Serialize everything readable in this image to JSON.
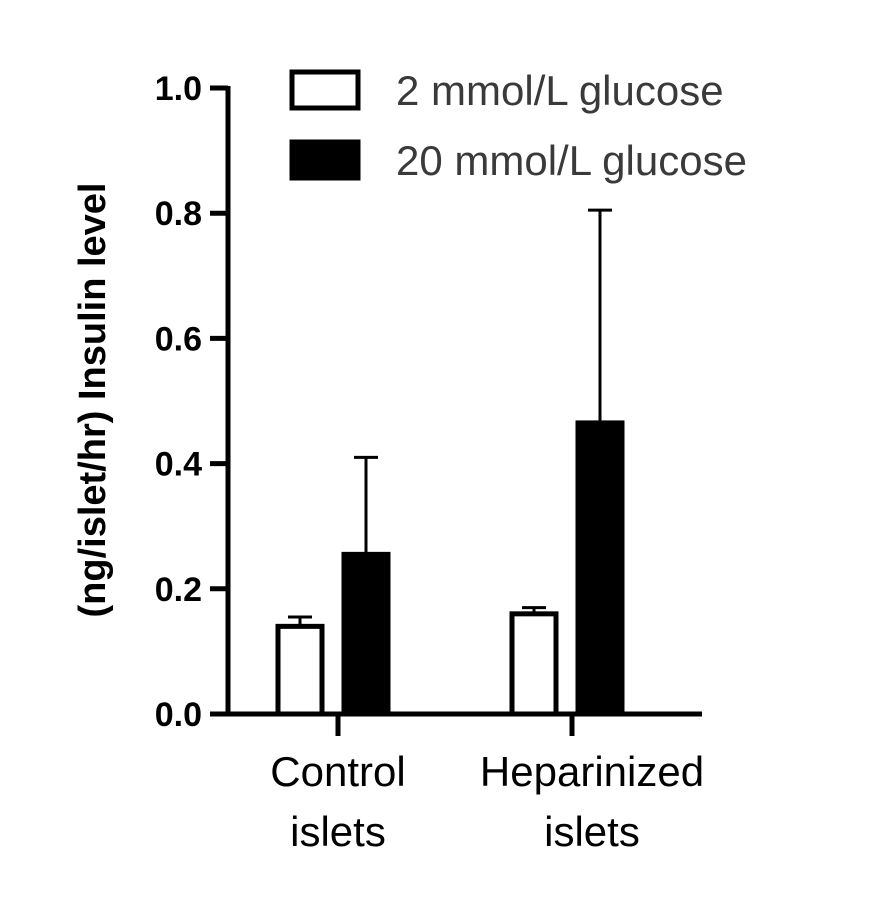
{
  "chart_data": {
    "type": "bar",
    "title": "",
    "ylabel": "(ng/islet/hr) Insulin level",
    "ylim": [
      0,
      1.0
    ],
    "yticks": [
      "0.0",
      "0.2",
      "0.4",
      "0.6",
      "0.8",
      "1.0"
    ],
    "ytick_values": [
      0,
      0.2,
      0.4,
      0.6,
      0.8,
      1.0
    ],
    "categories": [
      [
        "Control",
        "islets"
      ],
      [
        "Heparinized",
        "islets"
      ]
    ],
    "series": [
      {
        "name": "2 mmol/L glucose",
        "values": [
          0.14,
          0.16
        ],
        "errors": [
          0.015,
          0.01
        ],
        "fill": "#ffffff"
      },
      {
        "name": "20 mmol/L glucose",
        "values": [
          0.255,
          0.465
        ],
        "errors": [
          0.155,
          0.34
        ],
        "fill": "#000000"
      }
    ],
    "legend": {
      "position": "top-right"
    },
    "grid": false
  }
}
